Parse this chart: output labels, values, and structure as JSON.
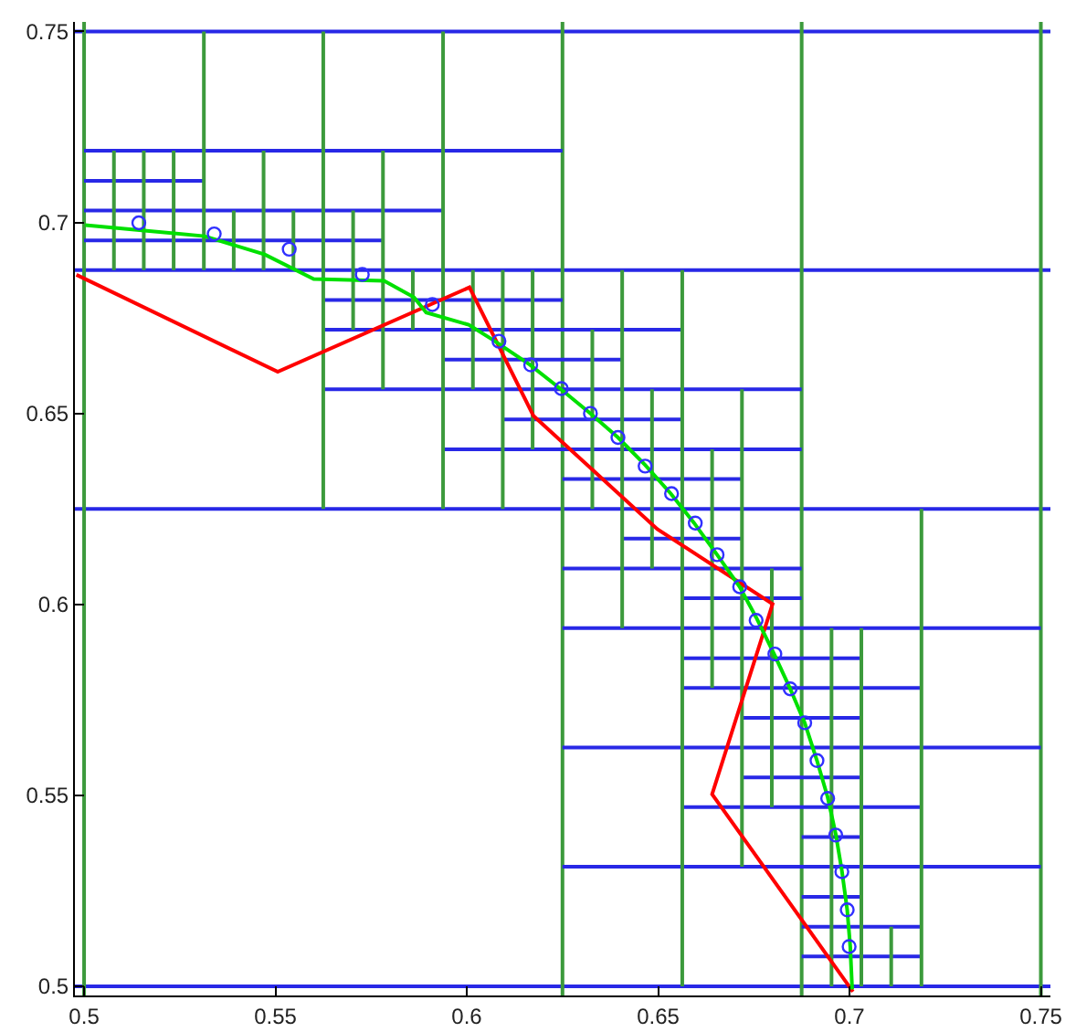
{
  "chart_data": {
    "type": "line",
    "xlim": [
      0.4976,
      0.7525
    ],
    "ylim": [
      0.4976,
      0.7525
    ],
    "xticks": [
      0.5,
      0.55,
      0.6,
      0.65,
      0.7,
      0.75
    ],
    "yticks": [
      0.5,
      0.55,
      0.6,
      0.65,
      0.7,
      0.75
    ],
    "legend": false,
    "ref_lines": [
      {
        "axis": "y",
        "value": 0.75,
        "color": "#2828e6"
      },
      {
        "axis": "y",
        "value": 0.6875,
        "color": "#2828e6"
      },
      {
        "axis": "y",
        "value": 0.625,
        "color": "#2828e6"
      },
      {
        "axis": "y",
        "value": 0.5,
        "color": "#2828e6"
      },
      {
        "axis": "x",
        "value": 0.5,
        "color": "#3c9a3c"
      },
      {
        "axis": "x",
        "value": 0.625,
        "color": "#3c9a3c"
      },
      {
        "axis": "x",
        "value": 0.6875,
        "color": "#3c9a3c"
      },
      {
        "axis": "x",
        "value": 0.75,
        "color": "#3c9a3c"
      }
    ],
    "series": [
      {
        "color": "#2828e6",
        "x": [
          0.5,
          0.625
        ],
        "values": [
          0.7188,
          0.7188
        ]
      },
      {
        "color": "#2828e6",
        "x": [
          0.5,
          0.5313
        ],
        "values": [
          0.7109,
          0.7109
        ]
      },
      {
        "color": "#2828e6",
        "x": [
          0.5,
          0.5938
        ],
        "values": [
          0.7031,
          0.7031
        ]
      },
      {
        "color": "#2828e6",
        "x": [
          0.5,
          0.5781
        ],
        "values": [
          0.6953,
          0.6953
        ]
      },
      {
        "color": "#2828e6",
        "x": [
          0.5625,
          0.625
        ],
        "values": [
          0.6797,
          0.6797
        ]
      },
      {
        "color": "#2828e6",
        "x": [
          0.5625,
          0.6563
        ],
        "values": [
          0.6719,
          0.6719
        ]
      },
      {
        "color": "#2828e6",
        "x": [
          0.5938,
          0.6406
        ],
        "values": [
          0.6641,
          0.6641
        ]
      },
      {
        "color": "#2828e6",
        "x": [
          0.5625,
          0.6875
        ],
        "values": [
          0.6563,
          0.6563
        ]
      },
      {
        "color": "#2828e6",
        "x": [
          0.6094,
          0.6563
        ],
        "values": [
          0.6484,
          0.6484
        ]
      },
      {
        "color": "#2828e6",
        "x": [
          0.5938,
          0.6875
        ],
        "values": [
          0.6406,
          0.6406
        ]
      },
      {
        "color": "#2828e6",
        "x": [
          0.625,
          0.6719
        ],
        "values": [
          0.6328,
          0.6328
        ]
      },
      {
        "color": "#2828e6",
        "x": [
          0.6406,
          0.6719
        ],
        "values": [
          0.6172,
          0.6172
        ]
      },
      {
        "color": "#2828e6",
        "x": [
          0.625,
          0.6875
        ],
        "values": [
          0.6094,
          0.6094
        ]
      },
      {
        "color": "#2828e6",
        "x": [
          0.6563,
          0.6875
        ],
        "values": [
          0.6016,
          0.6016
        ]
      },
      {
        "color": "#2828e6",
        "x": [
          0.625,
          0.75
        ],
        "values": [
          0.5938,
          0.5938
        ]
      },
      {
        "color": "#2828e6",
        "x": [
          0.6563,
          0.7031
        ],
        "values": [
          0.5859,
          0.5859
        ]
      },
      {
        "color": "#2828e6",
        "x": [
          0.6563,
          0.7188
        ],
        "values": [
          0.5781,
          0.5781
        ]
      },
      {
        "color": "#2828e6",
        "x": [
          0.6719,
          0.7031
        ],
        "values": [
          0.5703,
          0.5703
        ]
      },
      {
        "color": "#2828e6",
        "x": [
          0.625,
          0.75
        ],
        "values": [
          0.5625,
          0.5625
        ]
      },
      {
        "color": "#2828e6",
        "x": [
          0.6719,
          0.7031
        ],
        "values": [
          0.5547,
          0.5547
        ]
      },
      {
        "color": "#2828e6",
        "x": [
          0.6563,
          0.7188
        ],
        "values": [
          0.5469,
          0.5469
        ]
      },
      {
        "color": "#2828e6",
        "x": [
          0.6875,
          0.7031
        ],
        "values": [
          0.5391,
          0.5391
        ]
      },
      {
        "color": "#2828e6",
        "x": [
          0.625,
          0.75
        ],
        "values": [
          0.5313,
          0.5313
        ]
      },
      {
        "color": "#2828e6",
        "x": [
          0.6875,
          0.7031
        ],
        "values": [
          0.5234,
          0.5234
        ]
      },
      {
        "color": "#2828e6",
        "x": [
          0.6875,
          0.7188
        ],
        "values": [
          0.5156,
          0.5156
        ]
      },
      {
        "color": "#2828e6",
        "x": [
          0.6875,
          0.7188
        ],
        "values": [
          0.5078,
          0.5078
        ]
      },
      {
        "color": "#3c9a3c",
        "x": [
          0.5078,
          0.5078
        ],
        "values": [
          0.6875,
          0.7188
        ]
      },
      {
        "color": "#3c9a3c",
        "x": [
          0.5156,
          0.5156
        ],
        "values": [
          0.6875,
          0.7188
        ]
      },
      {
        "color": "#3c9a3c",
        "x": [
          0.5234,
          0.5234
        ],
        "values": [
          0.6875,
          0.7188
        ]
      },
      {
        "color": "#3c9a3c",
        "x": [
          0.5313,
          0.5313
        ],
        "values": [
          0.6875,
          0.75
        ]
      },
      {
        "color": "#3c9a3c",
        "x": [
          0.5391,
          0.5391
        ],
        "values": [
          0.6875,
          0.7031
        ]
      },
      {
        "color": "#3c9a3c",
        "x": [
          0.5469,
          0.5469
        ],
        "values": [
          0.6875,
          0.7188
        ]
      },
      {
        "color": "#3c9a3c",
        "x": [
          0.5547,
          0.5547
        ],
        "values": [
          0.6875,
          0.7031
        ]
      },
      {
        "color": "#3c9a3c",
        "x": [
          0.5625,
          0.5625
        ],
        "values": [
          0.625,
          0.75
        ]
      },
      {
        "color": "#3c9a3c",
        "x": [
          0.5703,
          0.5703
        ],
        "values": [
          0.6719,
          0.7031
        ]
      },
      {
        "color": "#3c9a3c",
        "x": [
          0.5781,
          0.5781
        ],
        "values": [
          0.6563,
          0.7188
        ]
      },
      {
        "color": "#3c9a3c",
        "x": [
          0.5859,
          0.5859
        ],
        "values": [
          0.6719,
          0.6875
        ]
      },
      {
        "color": "#3c9a3c",
        "x": [
          0.5938,
          0.5938
        ],
        "values": [
          0.625,
          0.75
        ]
      },
      {
        "color": "#3c9a3c",
        "x": [
          0.6016,
          0.6016
        ],
        "values": [
          0.6563,
          0.6875
        ]
      },
      {
        "color": "#3c9a3c",
        "x": [
          0.6094,
          0.6094
        ],
        "values": [
          0.625,
          0.6875
        ]
      },
      {
        "color": "#3c9a3c",
        "x": [
          0.6172,
          0.6172
        ],
        "values": [
          0.6406,
          0.6875
        ]
      },
      {
        "color": "#3c9a3c",
        "x": [
          0.6328,
          0.6328
        ],
        "values": [
          0.625,
          0.6719
        ]
      },
      {
        "color": "#3c9a3c",
        "x": [
          0.6406,
          0.6406
        ],
        "values": [
          0.5938,
          0.6875
        ]
      },
      {
        "color": "#3c9a3c",
        "x": [
          0.6484,
          0.6484
        ],
        "values": [
          0.6094,
          0.6563
        ]
      },
      {
        "color": "#3c9a3c",
        "x": [
          0.6563,
          0.6563
        ],
        "values": [
          0.5,
          0.6875
        ]
      },
      {
        "color": "#3c9a3c",
        "x": [
          0.6641,
          0.6641
        ],
        "values": [
          0.5781,
          0.6406
        ]
      },
      {
        "color": "#3c9a3c",
        "x": [
          0.6719,
          0.6719
        ],
        "values": [
          0.5313,
          0.6563
        ]
      },
      {
        "color": "#3c9a3c",
        "x": [
          0.6797,
          0.6797
        ],
        "values": [
          0.5469,
          0.6094
        ]
      },
      {
        "color": "#3c9a3c",
        "x": [
          0.6953,
          0.6953
        ],
        "values": [
          0.5,
          0.5938
        ]
      },
      {
        "color": "#3c9a3c",
        "x": [
          0.7031,
          0.7031
        ],
        "values": [
          0.5,
          0.5938
        ]
      },
      {
        "color": "#3c9a3c",
        "x": [
          0.7109,
          0.7109
        ],
        "values": [
          0.5,
          0.5156
        ]
      },
      {
        "color": "#3c9a3c",
        "x": [
          0.7188,
          0.7188
        ],
        "values": [
          0.5,
          0.625
        ]
      },
      {
        "color": "#ff0000",
        "x": [
          0.498,
          0.5506,
          0.6007,
          0.6174,
          0.6498,
          0.6799,
          0.6641,
          0.7009
        ],
        "values": [
          0.6863,
          0.6609,
          0.683,
          0.6494,
          0.6197,
          0.6001,
          0.5503,
          0.4986
        ]
      },
      {
        "color": "#00e000",
        "x": [
          0.5003,
          0.5315,
          0.5472,
          0.56,
          0.5784,
          0.5862,
          0.5894,
          0.6005,
          0.6069,
          0.6164,
          0.6244,
          0.6323,
          0.6395,
          0.6466,
          0.6533,
          0.6594,
          0.6654,
          0.6713,
          0.6756,
          0.6803,
          0.6845,
          0.6883,
          0.6915,
          0.6943,
          0.6964,
          0.698,
          0.6994,
          0.7002,
          0.7007
        ],
        "values": [
          0.6993,
          0.6964,
          0.6916,
          0.6852,
          0.6847,
          0.6804,
          0.6764,
          0.6732,
          0.6692,
          0.6628,
          0.6565,
          0.65,
          0.6437,
          0.6365,
          0.629,
          0.6213,
          0.613,
          0.6046,
          0.5966,
          0.587,
          0.5779,
          0.569,
          0.5591,
          0.5495,
          0.5399,
          0.5303,
          0.52,
          0.5104,
          0.4992
        ]
      },
      {
        "type": "scatter",
        "color": "#3030ff",
        "marker": "circle",
        "x": [
          0.5143,
          0.534,
          0.5536,
          0.5727,
          0.591,
          0.6084,
          0.6167,
          0.6247,
          0.6323,
          0.6395,
          0.6466,
          0.6535,
          0.6597,
          0.6654,
          0.6713,
          0.6756,
          0.6805,
          0.6845,
          0.6883,
          0.6915,
          0.6943,
          0.6964,
          0.698,
          0.6994,
          0.6999
        ],
        "values": [
          0.6999,
          0.697,
          0.693,
          0.6864,
          0.6785,
          0.6689,
          0.6627,
          0.6565,
          0.65,
          0.6437,
          0.6362,
          0.629,
          0.6213,
          0.613,
          0.6046,
          0.5958,
          0.587,
          0.5779,
          0.569,
          0.5591,
          0.5492,
          0.5396,
          0.53,
          0.52,
          0.5104
        ]
      }
    ]
  }
}
